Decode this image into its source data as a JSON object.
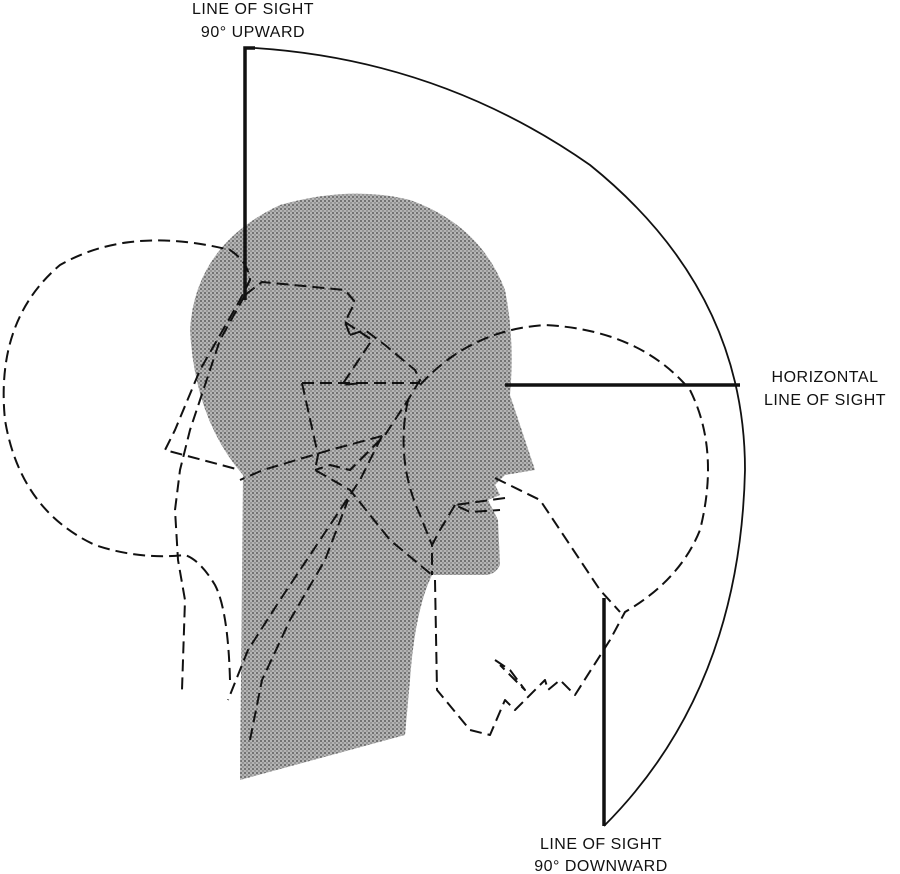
{
  "labels": {
    "upward_line1": "LINE OF SIGHT",
    "upward_line2": "90° UPWARD",
    "horizontal_line1": "HORIZONTAL",
    "horizontal_line2": "LINE OF SIGHT",
    "downward_line1": "LINE OF SIGHT",
    "downward_line2": "90° DOWNWARD"
  },
  "colors": {
    "ink": "#111111",
    "shade": "#9a9a9a",
    "background": "#ffffff"
  }
}
